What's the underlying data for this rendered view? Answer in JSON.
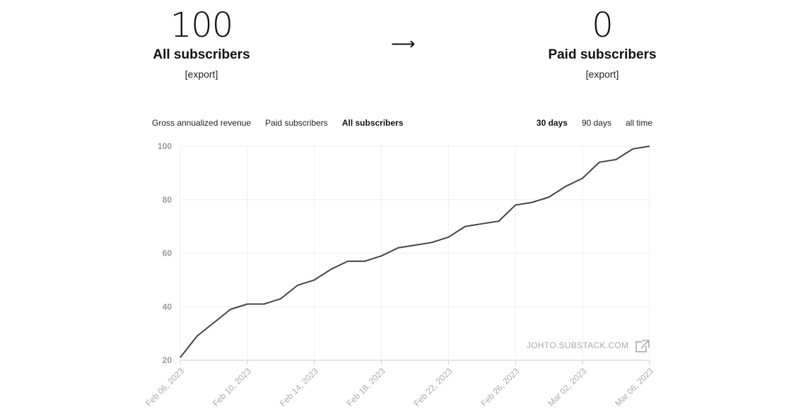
{
  "stats": {
    "left": {
      "number": "100",
      "label": "All subscribers",
      "export": "[export]"
    },
    "arrow": "⟶",
    "right": {
      "number": "0",
      "label": "Paid subscribers",
      "export": "[export]"
    }
  },
  "tabs": [
    {
      "label": "Gross annualized revenue",
      "active": false
    },
    {
      "label": "Paid subscribers",
      "active": false
    },
    {
      "label": "All subscribers",
      "active": true
    }
  ],
  "ranges": [
    {
      "label": "30 days",
      "active": true
    },
    {
      "label": "90 days",
      "active": false
    },
    {
      "label": "all time",
      "active": false
    }
  ],
  "watermark": "JOHTO.SUBSTACK.COM",
  "icons": {
    "external": "external-link-icon"
  },
  "colors": {
    "line": "#444444",
    "grid": "#eeeeee",
    "axis": "#cccccc"
  },
  "chart_data": {
    "type": "line",
    "ylim": [
      20,
      100
    ],
    "yticks": [
      20,
      40,
      60,
      80,
      100
    ],
    "xticks": [
      "Feb 06, 2023",
      "Feb 10, 2023",
      "Feb 14, 2023",
      "Feb 18, 2023",
      "Feb 22, 2023",
      "Feb 26, 2023",
      "Mar 02, 2023",
      "Mar 06, 2023"
    ],
    "x": [
      "2023-02-06",
      "2023-02-07",
      "2023-02-08",
      "2023-02-09",
      "2023-02-10",
      "2023-02-11",
      "2023-02-12",
      "2023-02-13",
      "2023-02-14",
      "2023-02-15",
      "2023-02-16",
      "2023-02-17",
      "2023-02-18",
      "2023-02-19",
      "2023-02-20",
      "2023-02-21",
      "2023-02-22",
      "2023-02-23",
      "2023-02-24",
      "2023-02-25",
      "2023-02-26",
      "2023-02-27",
      "2023-02-28",
      "2023-03-01",
      "2023-03-02",
      "2023-03-03",
      "2023-03-04",
      "2023-03-05",
      "2023-03-06"
    ],
    "values": [
      21,
      29,
      34,
      39,
      41,
      41,
      43,
      48,
      50,
      54,
      57,
      57,
      59,
      62,
      63,
      64,
      66,
      70,
      71,
      72,
      78,
      79,
      81,
      85,
      88,
      94,
      95,
      99,
      100
    ],
    "grid": true
  }
}
